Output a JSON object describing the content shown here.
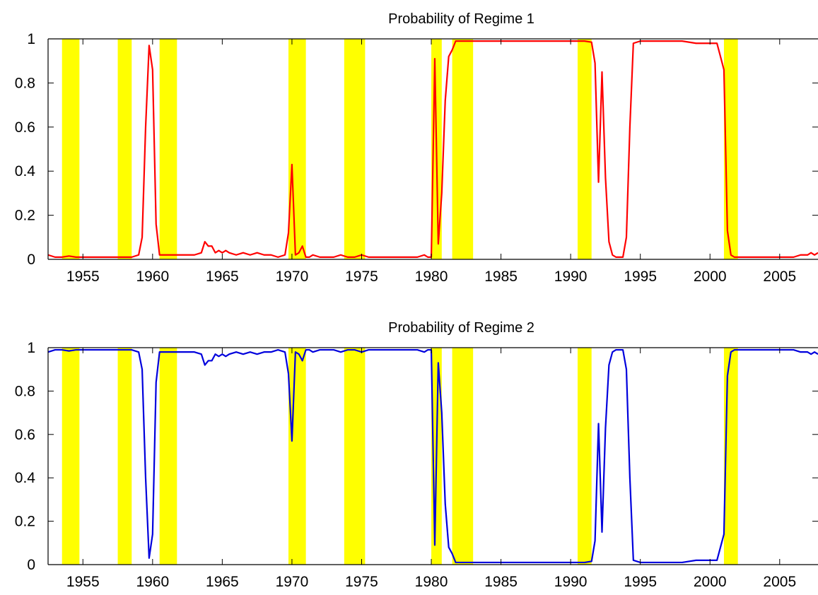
{
  "chart_data": [
    {
      "type": "line",
      "title": "Probability of Regime 1",
      "xlabel": "",
      "ylabel": "",
      "xlim": [
        1952.5,
        2007.75
      ],
      "ylim": [
        0,
        1
      ],
      "x_ticks": [
        "1955",
        "1960",
        "1965",
        "1970",
        "1975",
        "1980",
        "1985",
        "1990",
        "1995",
        "2000",
        "2005"
      ],
      "y_ticks": [
        "0",
        "0.2",
        "0.4",
        "0.6",
        "0.8",
        "1"
      ],
      "grid": false,
      "legend": "none",
      "shaded_periods": [
        [
          1953.5,
          1954.75
        ],
        [
          1957.5,
          1958.5
        ],
        [
          1960.5,
          1961.75
        ],
        [
          1969.75,
          1971.0
        ],
        [
          1973.75,
          1975.25
        ],
        [
          1980.0,
          1980.75
        ],
        [
          1981.5,
          1983.0
        ],
        [
          1990.5,
          1991.5
        ],
        [
          2001.0,
          2002.0
        ]
      ],
      "shade_color": "#ffff00",
      "series": [
        {
          "color": "#ff0000",
          "x": [
            1952.5,
            1953.0,
            1953.5,
            1954.0,
            1954.5,
            1955.0,
            1956.0,
            1957.0,
            1957.5,
            1958.5,
            1959.0,
            1959.25,
            1959.5,
            1959.75,
            1960.0,
            1960.25,
            1960.5,
            1961.0,
            1961.5,
            1962.0,
            1962.5,
            1963.0,
            1963.5,
            1963.75,
            1964.0,
            1964.25,
            1964.5,
            1964.75,
            1965.0,
            1965.25,
            1965.5,
            1966.0,
            1966.5,
            1967.0,
            1967.5,
            1968.0,
            1968.5,
            1969.0,
            1969.5,
            1969.75,
            1970.0,
            1970.25,
            1970.5,
            1970.75,
            1971.0,
            1971.25,
            1971.5,
            1972.0,
            1972.5,
            1973.0,
            1973.5,
            1974.0,
            1974.5,
            1975.0,
            1975.5,
            1976.0,
            1976.5,
            1977.0,
            1977.5,
            1978.0,
            1978.5,
            1979.0,
            1979.5,
            1979.75,
            1980.0,
            1980.25,
            1980.5,
            1980.75,
            1981.0,
            1981.25,
            1981.5,
            1981.75,
            1982.0,
            1982.5,
            1983.0,
            1984.0,
            1985.0,
            1986.0,
            1987.0,
            1988.0,
            1989.0,
            1990.0,
            1991.0,
            1991.5,
            1991.75,
            1992.0,
            1992.25,
            1992.5,
            1992.75,
            1993.0,
            1993.25,
            1993.5,
            1993.75,
            1994.0,
            1994.25,
            1994.5,
            1995.0,
            1996.0,
            1997.0,
            1998.0,
            1999.0,
            1999.5,
            2000.0,
            2000.5,
            2001.0,
            2001.25,
            2001.5,
            2001.75,
            2002.0,
            2003.0,
            2004.0,
            2005.0,
            2006.0,
            2006.5,
            2007.0,
            2007.25,
            2007.5,
            2007.75
          ],
          "values": [
            0.02,
            0.01,
            0.01,
            0.015,
            0.01,
            0.01,
            0.01,
            0.01,
            0.01,
            0.01,
            0.02,
            0.1,
            0.6,
            0.97,
            0.86,
            0.16,
            0.02,
            0.02,
            0.02,
            0.02,
            0.02,
            0.02,
            0.03,
            0.08,
            0.06,
            0.06,
            0.03,
            0.04,
            0.03,
            0.04,
            0.03,
            0.02,
            0.03,
            0.02,
            0.03,
            0.02,
            0.02,
            0.01,
            0.02,
            0.12,
            0.43,
            0.02,
            0.03,
            0.06,
            0.01,
            0.01,
            0.02,
            0.01,
            0.01,
            0.01,
            0.02,
            0.01,
            0.01,
            0.02,
            0.01,
            0.01,
            0.01,
            0.01,
            0.01,
            0.01,
            0.01,
            0.01,
            0.02,
            0.01,
            0.01,
            0.91,
            0.07,
            0.3,
            0.72,
            0.92,
            0.95,
            0.99,
            0.99,
            0.99,
            0.99,
            0.99,
            0.99,
            0.99,
            0.99,
            0.99,
            0.99,
            0.99,
            0.99,
            0.985,
            0.89,
            0.35,
            0.85,
            0.37,
            0.08,
            0.02,
            0.01,
            0.01,
            0.01,
            0.1,
            0.6,
            0.98,
            0.99,
            0.99,
            0.99,
            0.99,
            0.98,
            0.98,
            0.98,
            0.98,
            0.86,
            0.13,
            0.02,
            0.01,
            0.01,
            0.01,
            0.01,
            0.01,
            0.01,
            0.02,
            0.02,
            0.03,
            0.02,
            0.03
          ]
        }
      ]
    },
    {
      "type": "line",
      "title": "Probability of Regime 2",
      "xlabel": "",
      "ylabel": "",
      "xlim": [
        1952.5,
        2007.75
      ],
      "ylim": [
        0,
        1
      ],
      "x_ticks": [
        "1955",
        "1960",
        "1965",
        "1970",
        "1975",
        "1980",
        "1985",
        "1990",
        "1995",
        "2000",
        "2005"
      ],
      "y_ticks": [
        "0",
        "0.2",
        "0.4",
        "0.6",
        "0.8",
        "1"
      ],
      "grid": false,
      "legend": "none",
      "shaded_periods": [
        [
          1953.5,
          1954.75
        ],
        [
          1957.5,
          1958.5
        ],
        [
          1960.5,
          1961.75
        ],
        [
          1969.75,
          1971.0
        ],
        [
          1973.75,
          1975.25
        ],
        [
          1980.0,
          1980.75
        ],
        [
          1981.5,
          1983.0
        ],
        [
          1990.5,
          1991.5
        ],
        [
          2001.0,
          2002.0
        ]
      ],
      "shade_color": "#ffff00",
      "series": [
        {
          "color": "#0000dd",
          "x": [
            1952.5,
            1953.0,
            1953.5,
            1954.0,
            1954.5,
            1955.0,
            1956.0,
            1957.0,
            1957.5,
            1958.5,
            1959.0,
            1959.25,
            1959.5,
            1959.75,
            1960.0,
            1960.25,
            1960.5,
            1961.0,
            1961.5,
            1962.0,
            1962.5,
            1963.0,
            1963.5,
            1963.75,
            1964.0,
            1964.25,
            1964.5,
            1964.75,
            1965.0,
            1965.25,
            1965.5,
            1966.0,
            1966.5,
            1967.0,
            1967.5,
            1968.0,
            1968.5,
            1969.0,
            1969.5,
            1969.75,
            1970.0,
            1970.25,
            1970.5,
            1970.75,
            1971.0,
            1971.25,
            1971.5,
            1972.0,
            1972.5,
            1973.0,
            1973.5,
            1974.0,
            1974.5,
            1975.0,
            1975.5,
            1976.0,
            1976.5,
            1977.0,
            1977.5,
            1978.0,
            1978.5,
            1979.0,
            1979.5,
            1979.75,
            1980.0,
            1980.25,
            1980.5,
            1980.75,
            1981.0,
            1981.25,
            1981.5,
            1981.75,
            1982.0,
            1982.5,
            1983.0,
            1984.0,
            1985.0,
            1986.0,
            1987.0,
            1988.0,
            1989.0,
            1990.0,
            1991.0,
            1991.5,
            1991.75,
            1992.0,
            1992.25,
            1992.5,
            1992.75,
            1993.0,
            1993.25,
            1993.5,
            1993.75,
            1994.0,
            1994.25,
            1994.5,
            1995.0,
            1996.0,
            1997.0,
            1998.0,
            1999.0,
            1999.5,
            2000.0,
            2000.5,
            2001.0,
            2001.25,
            2001.5,
            2001.75,
            2002.0,
            2003.0,
            2004.0,
            2005.0,
            2006.0,
            2006.5,
            2007.0,
            2007.25,
            2007.5,
            2007.75
          ],
          "values": [
            0.98,
            0.99,
            0.99,
            0.985,
            0.99,
            0.99,
            0.99,
            0.99,
            0.99,
            0.99,
            0.98,
            0.9,
            0.4,
            0.03,
            0.14,
            0.84,
            0.98,
            0.98,
            0.98,
            0.98,
            0.98,
            0.98,
            0.97,
            0.92,
            0.94,
            0.94,
            0.97,
            0.96,
            0.97,
            0.96,
            0.97,
            0.98,
            0.97,
            0.98,
            0.97,
            0.98,
            0.98,
            0.99,
            0.98,
            0.88,
            0.57,
            0.98,
            0.97,
            0.94,
            0.99,
            0.99,
            0.98,
            0.99,
            0.99,
            0.99,
            0.98,
            0.99,
            0.99,
            0.98,
            0.99,
            0.99,
            0.99,
            0.99,
            0.99,
            0.99,
            0.99,
            0.99,
            0.98,
            0.99,
            0.99,
            0.09,
            0.93,
            0.7,
            0.28,
            0.08,
            0.05,
            0.01,
            0.01,
            0.01,
            0.01,
            0.01,
            0.01,
            0.01,
            0.01,
            0.01,
            0.01,
            0.01,
            0.01,
            0.015,
            0.11,
            0.65,
            0.15,
            0.63,
            0.92,
            0.98,
            0.99,
            0.99,
            0.99,
            0.9,
            0.4,
            0.02,
            0.01,
            0.01,
            0.01,
            0.01,
            0.02,
            0.02,
            0.02,
            0.02,
            0.14,
            0.87,
            0.98,
            0.99,
            0.99,
            0.99,
            0.99,
            0.99,
            0.99,
            0.98,
            0.98,
            0.97,
            0.98,
            0.97
          ]
        }
      ]
    }
  ]
}
